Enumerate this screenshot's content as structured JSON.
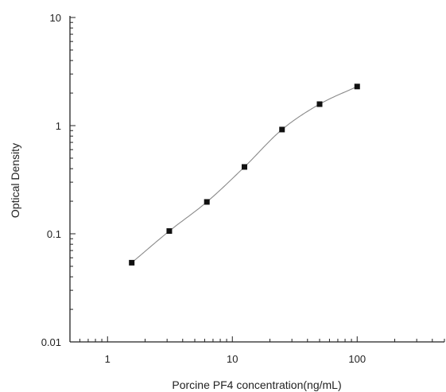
{
  "chart_data": {
    "type": "scatter",
    "title": "",
    "xlabel": "Porcine PF4 concentration(ng/mL)",
    "ylabel": "Optical Density",
    "xscale": "log",
    "yscale": "log",
    "xlim": [
      0.5,
      500
    ],
    "ylim": [
      0.01,
      10
    ],
    "x_ticks": [
      1,
      10,
      100
    ],
    "x_tick_labels": [
      "1",
      "10",
      "100"
    ],
    "y_ticks": [
      0.01,
      0.1,
      1,
      10
    ],
    "y_tick_labels": [
      "0.01",
      "0.1",
      "1",
      "10"
    ],
    "grid": false,
    "legend": "none",
    "series": [
      {
        "x": [
          1.5625,
          3.125,
          6.25,
          12.5,
          25,
          50,
          100
        ],
        "y": [
          0.054,
          0.106,
          0.197,
          0.415,
          0.92,
          1.58,
          2.3
        ],
        "marker": "square",
        "curve": "fitted"
      }
    ],
    "colors": {
      "axis": "#222222",
      "marker": "#111111",
      "curve": "#8a8a8a"
    }
  }
}
